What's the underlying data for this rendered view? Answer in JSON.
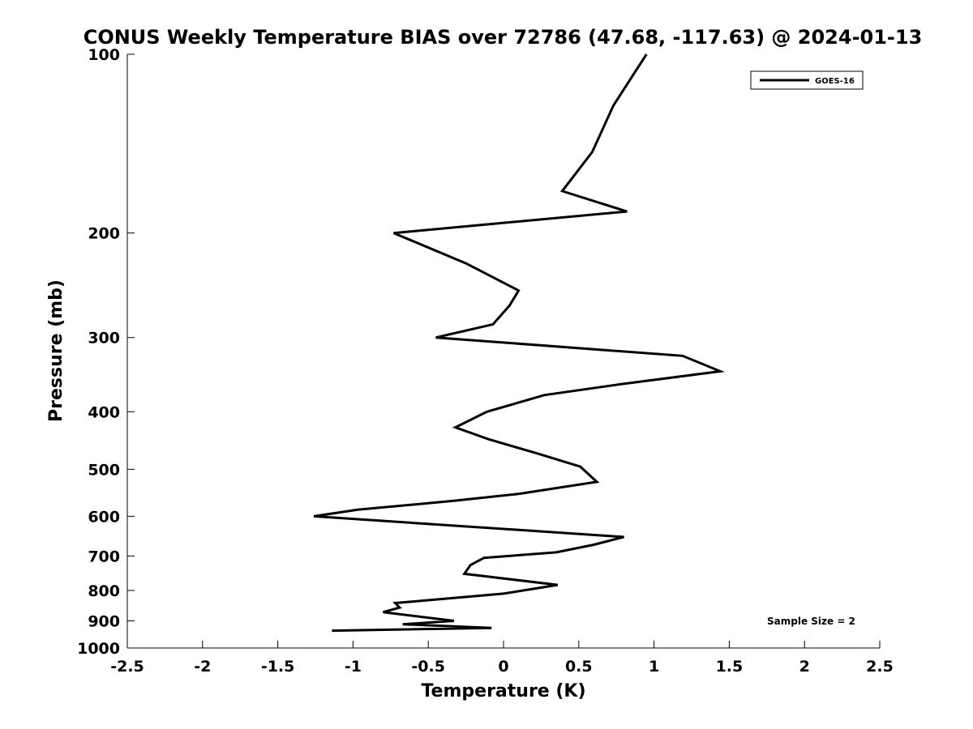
{
  "chart_data": {
    "type": "line",
    "title": "CONUS Weekly Temperature BIAS over 72786 (47.68, -117.63) @ 2024-01-13",
    "xlabel": "Temperature (K)",
    "ylabel": "Pressure (mb)",
    "xlim": [
      -2.5,
      2.5
    ],
    "ylim": [
      1000,
      100
    ],
    "yscale": "log",
    "x_ticks": [
      "-2.5",
      "-2",
      "-1.5",
      "-1",
      "-0.5",
      "0",
      "0.5",
      "1",
      "1.5",
      "2",
      "2.5"
    ],
    "y_ticks": [
      "100",
      "200",
      "300",
      "400",
      "500",
      "600",
      "700",
      "800",
      "900",
      "1000"
    ],
    "grid": false,
    "legend": {
      "position": "top-right",
      "entries": [
        "GOES-16"
      ]
    },
    "annotation": "Sample Size = 2",
    "line_color": "#000000",
    "series": [
      {
        "name": "GOES-16",
        "points": [
          {
            "x": 0.95,
            "y": 100
          },
          {
            "x": 0.73,
            "y": 122
          },
          {
            "x": 0.59,
            "y": 146
          },
          {
            "x": 0.39,
            "y": 170
          },
          {
            "x": 0.82,
            "y": 184
          },
          {
            "x": -0.73,
            "y": 200
          },
          {
            "x": -0.25,
            "y": 225
          },
          {
            "x": 0.1,
            "y": 250
          },
          {
            "x": 0.04,
            "y": 265
          },
          {
            "x": -0.07,
            "y": 285
          },
          {
            "x": -0.45,
            "y": 300
          },
          {
            "x": 1.19,
            "y": 322
          },
          {
            "x": 1.44,
            "y": 342
          },
          {
            "x": 0.76,
            "y": 360
          },
          {
            "x": 0.27,
            "y": 375
          },
          {
            "x": -0.11,
            "y": 400
          },
          {
            "x": -0.32,
            "y": 425
          },
          {
            "x": -0.1,
            "y": 445
          },
          {
            "x": 0.22,
            "y": 470
          },
          {
            "x": 0.51,
            "y": 495
          },
          {
            "x": 0.62,
            "y": 525
          },
          {
            "x": 0.1,
            "y": 550
          },
          {
            "x": -0.33,
            "y": 565
          },
          {
            "x": -0.97,
            "y": 585
          },
          {
            "x": -1.26,
            "y": 600
          },
          {
            "x": 0.8,
            "y": 650
          },
          {
            "x": 0.6,
            "y": 670
          },
          {
            "x": 0.35,
            "y": 690
          },
          {
            "x": -0.13,
            "y": 705
          },
          {
            "x": -0.22,
            "y": 725
          },
          {
            "x": -0.26,
            "y": 750
          },
          {
            "x": 0.36,
            "y": 783
          },
          {
            "x": 0.0,
            "y": 810
          },
          {
            "x": -0.72,
            "y": 840
          },
          {
            "x": -0.69,
            "y": 855
          },
          {
            "x": -0.8,
            "y": 870
          },
          {
            "x": -0.33,
            "y": 900
          },
          {
            "x": -0.67,
            "y": 912
          },
          {
            "x": -0.08,
            "y": 925
          },
          {
            "x": -1.14,
            "y": 935
          }
        ]
      }
    ]
  }
}
